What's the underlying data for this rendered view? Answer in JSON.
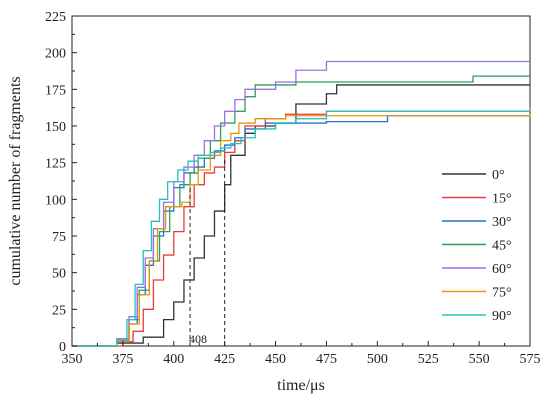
{
  "chart_data": {
    "type": "line",
    "xlabel": "time/μs",
    "ylabel": "cumulative number of fragments",
    "xlim": [
      350,
      575
    ],
    "ylim": [
      0,
      225
    ],
    "xticks": [
      350,
      375,
      400,
      425,
      450,
      475,
      500,
      525,
      550,
      575
    ],
    "yticks": [
      0,
      25,
      50,
      75,
      100,
      125,
      150,
      175,
      200,
      225
    ],
    "grid": false,
    "legend_position": "right",
    "annotations": [
      {
        "text": "408",
        "x": 408
      },
      {
        "x": 425
      }
    ],
    "series": [
      {
        "name": "0°",
        "color": "#333333",
        "points": [
          [
            350,
            0
          ],
          [
            372,
            2
          ],
          [
            385,
            6
          ],
          [
            395,
            18
          ],
          [
            400,
            30
          ],
          [
            405,
            45
          ],
          [
            410,
            60
          ],
          [
            415,
            75
          ],
          [
            420,
            92
          ],
          [
            425,
            110
          ],
          [
            428,
            130
          ],
          [
            435,
            145
          ],
          [
            440,
            150
          ],
          [
            450,
            152
          ],
          [
            460,
            165
          ],
          [
            475,
            172
          ],
          [
            480,
            178
          ],
          [
            575,
            178
          ]
        ]
      },
      {
        "name": "15°",
        "color": "#e83b3b",
        "points": [
          [
            350,
            0
          ],
          [
            375,
            3
          ],
          [
            380,
            10
          ],
          [
            385,
            25
          ],
          [
            390,
            45
          ],
          [
            395,
            62
          ],
          [
            400,
            78
          ],
          [
            405,
            95
          ],
          [
            410,
            110
          ],
          [
            415,
            118
          ],
          [
            420,
            122
          ],
          [
            425,
            132
          ],
          [
            430,
            140
          ],
          [
            435,
            150
          ],
          [
            445,
            155
          ],
          [
            455,
            158
          ],
          [
            475,
            160
          ],
          [
            575,
            163
          ]
        ]
      },
      {
        "name": "30°",
        "color": "#2b6fc9",
        "points": [
          [
            350,
            0
          ],
          [
            372,
            4
          ],
          [
            378,
            15
          ],
          [
            382,
            35
          ],
          [
            386,
            55
          ],
          [
            390,
            75
          ],
          [
            395,
            92
          ],
          [
            400,
            108
          ],
          [
            405,
            118
          ],
          [
            410,
            122
          ],
          [
            415,
            128
          ],
          [
            420,
            133
          ],
          [
            425,
            137
          ],
          [
            430,
            142
          ],
          [
            435,
            148
          ],
          [
            445,
            152
          ],
          [
            475,
            153
          ],
          [
            505,
            157
          ],
          [
            575,
            157
          ]
        ]
      },
      {
        "name": "45°",
        "color": "#2e9e5b",
        "points": [
          [
            350,
            0
          ],
          [
            372,
            4
          ],
          [
            378,
            18
          ],
          [
            383,
            38
          ],
          [
            388,
            58
          ],
          [
            393,
            78
          ],
          [
            398,
            95
          ],
          [
            403,
            110
          ],
          [
            408,
            118
          ],
          [
            412,
            128
          ],
          [
            418,
            140
          ],
          [
            423,
            152
          ],
          [
            430,
            160
          ],
          [
            435,
            170
          ],
          [
            440,
            178
          ],
          [
            460,
            180
          ],
          [
            545,
            180
          ],
          [
            547,
            184
          ],
          [
            575,
            184
          ]
        ]
      },
      {
        "name": "60°",
        "color": "#a070e0",
        "points": [
          [
            350,
            0
          ],
          [
            372,
            5
          ],
          [
            378,
            20
          ],
          [
            382,
            40
          ],
          [
            386,
            60
          ],
          [
            390,
            80
          ],
          [
            395,
            98
          ],
          [
            400,
            112
          ],
          [
            405,
            122
          ],
          [
            410,
            130
          ],
          [
            415,
            140
          ],
          [
            420,
            150
          ],
          [
            425,
            160
          ],
          [
            430,
            168
          ],
          [
            435,
            175
          ],
          [
            450,
            180
          ],
          [
            460,
            188
          ],
          [
            475,
            194
          ],
          [
            575,
            194
          ]
        ]
      },
      {
        "name": "75°",
        "color": "#e09a10",
        "points": [
          [
            350,
            0
          ],
          [
            372,
            3
          ],
          [
            378,
            15
          ],
          [
            383,
            35
          ],
          [
            388,
            58
          ],
          [
            392,
            80
          ],
          [
            396,
            95
          ],
          [
            400,
            95
          ],
          [
            404,
            98
          ],
          [
            408,
            110
          ],
          [
            412,
            120
          ],
          [
            418,
            130
          ],
          [
            423,
            140
          ],
          [
            428,
            145
          ],
          [
            432,
            152
          ],
          [
            440,
            155
          ],
          [
            455,
            157
          ],
          [
            575,
            158
          ]
        ]
      },
      {
        "name": "90°",
        "color": "#27c0c0",
        "points": [
          [
            350,
            0
          ],
          [
            372,
            4
          ],
          [
            377,
            18
          ],
          [
            381,
            42
          ],
          [
            385,
            65
          ],
          [
            389,
            85
          ],
          [
            393,
            100
          ],
          [
            397,
            112
          ],
          [
            402,
            120
          ],
          [
            407,
            126
          ],
          [
            412,
            130
          ],
          [
            418,
            132
          ],
          [
            423,
            135
          ],
          [
            428,
            138
          ],
          [
            433,
            142
          ],
          [
            440,
            148
          ],
          [
            450,
            152
          ],
          [
            460,
            155
          ],
          [
            475,
            160
          ],
          [
            575,
            160
          ]
        ]
      }
    ]
  }
}
